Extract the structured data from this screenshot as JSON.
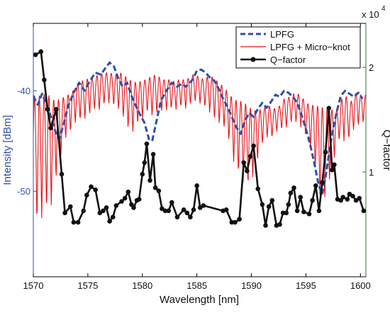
{
  "chart_data": {
    "type": "line",
    "xlabel": "Wavelength [nm]",
    "ylabel_left": "Intensity [dBm]",
    "ylabel_right": "Q−factor",
    "right_axis_multiplier": "x 10",
    "right_axis_exponent": "4",
    "xlim": [
      1570,
      1600.5
    ],
    "ylim_left": [
      -58.5,
      -33.3
    ],
    "ylim_right": [
      0,
      2.42
    ],
    "x_ticks": [
      1570,
      1575,
      1580,
      1585,
      1590,
      1595,
      1600
    ],
    "y_left_ticks": [
      -40,
      -50
    ],
    "y_right_ticks": [
      1,
      2
    ],
    "grid": false,
    "legend_position": "top-right",
    "colors": {
      "left_axis": "#3050a8",
      "right_axis": "#2a7a2a",
      "lpfg": "#2d4fa8",
      "lpfg_microknot": "#e8141a",
      "qfactor": "#111111"
    },
    "series": [
      {
        "name": "LPFG",
        "axis": "left",
        "style": "dashed",
        "points": [
          [
            1570.0,
            -40.5
          ],
          [
            1570.4,
            -41.4
          ],
          [
            1570.8,
            -40.3
          ],
          [
            1571.2,
            -41.3
          ],
          [
            1571.6,
            -42.5
          ],
          [
            1572.0,
            -44.0
          ],
          [
            1572.4,
            -44.8
          ],
          [
            1572.8,
            -43.2
          ],
          [
            1573.2,
            -41.5
          ],
          [
            1573.7,
            -40.2
          ],
          [
            1574.2,
            -39.2
          ],
          [
            1574.7,
            -40.0
          ],
          [
            1575.2,
            -39.0
          ],
          [
            1575.7,
            -38.2
          ],
          [
            1576.2,
            -38.4
          ],
          [
            1576.7,
            -37.6
          ],
          [
            1577.0,
            -37.2
          ],
          [
            1577.4,
            -37.6
          ],
          [
            1577.8,
            -38.8
          ],
          [
            1578.2,
            -39.6
          ],
          [
            1578.6,
            -39.2
          ],
          [
            1579.0,
            -40.5
          ],
          [
            1579.4,
            -41.5
          ],
          [
            1579.8,
            -42.4
          ],
          [
            1580.2,
            -43.2
          ],
          [
            1580.6,
            -44.8
          ],
          [
            1580.9,
            -45.0
          ],
          [
            1581.3,
            -43.0
          ],
          [
            1581.7,
            -41.0
          ],
          [
            1582.2,
            -40.0
          ],
          [
            1582.7,
            -39.2
          ],
          [
            1583.2,
            -39.6
          ],
          [
            1583.6,
            -39.3
          ],
          [
            1584.0,
            -39.6
          ],
          [
            1584.6,
            -38.9
          ],
          [
            1585.0,
            -38.0
          ],
          [
            1585.4,
            -37.9
          ],
          [
            1585.8,
            -38.2
          ],
          [
            1586.2,
            -38.7
          ],
          [
            1586.6,
            -39.0
          ],
          [
            1587.0,
            -39.8
          ],
          [
            1587.4,
            -40.8
          ],
          [
            1587.8,
            -41.6
          ],
          [
            1588.2,
            -42.6
          ],
          [
            1588.6,
            -43.6
          ],
          [
            1589.0,
            -44.3
          ],
          [
            1589.4,
            -43.0
          ],
          [
            1589.8,
            -42.2
          ],
          [
            1590.2,
            -42.6
          ],
          [
            1590.6,
            -41.8
          ],
          [
            1591.0,
            -41.2
          ],
          [
            1591.4,
            -41.7
          ],
          [
            1591.8,
            -41.1
          ],
          [
            1592.2,
            -40.4
          ],
          [
            1592.6,
            -40.6
          ],
          [
            1593.0,
            -40.0
          ],
          [
            1593.4,
            -40.2
          ],
          [
            1593.8,
            -40.6
          ],
          [
            1594.2,
            -41.2
          ],
          [
            1594.6,
            -42.4
          ],
          [
            1595.0,
            -43.8
          ],
          [
            1595.4,
            -45.4
          ],
          [
            1595.8,
            -47.4
          ],
          [
            1596.2,
            -49.5
          ],
          [
            1596.5,
            -50.3
          ],
          [
            1596.8,
            -48.6
          ],
          [
            1597.1,
            -46.4
          ],
          [
            1597.4,
            -44.3
          ],
          [
            1597.8,
            -42.2
          ],
          [
            1598.2,
            -40.5
          ],
          [
            1598.6,
            -40.0
          ],
          [
            1599.0,
            -40.3
          ],
          [
            1599.4,
            -40.6
          ],
          [
            1599.8,
            -40.2
          ],
          [
            1600.2,
            -40.8
          ]
        ]
      },
      {
        "name": "LPFG + Micro−knot",
        "axis": "left",
        "style": "solid",
        "envelope": {
          "x": [
            1570.0,
            1570.5,
            1571.0,
            1571.5,
            1572.0,
            1572.5,
            1573.0,
            1573.5,
            1574.0,
            1574.5,
            1575.0,
            1575.5,
            1576.0,
            1576.5,
            1577.0,
            1577.5,
            1578.0,
            1578.5,
            1579.0,
            1579.5,
            1580.0,
            1580.5,
            1581.0,
            1581.5,
            1582.0,
            1582.5,
            1583.0,
            1583.5,
            1584.0,
            1584.5,
            1585.0,
            1585.5,
            1586.0,
            1586.5,
            1587.0,
            1587.5,
            1588.0,
            1588.5,
            1589.0,
            1589.5,
            1590.0,
            1590.5,
            1591.0,
            1591.5,
            1592.0,
            1592.5,
            1593.0,
            1593.5,
            1594.0,
            1594.5,
            1595.0,
            1595.5,
            1596.0,
            1596.5,
            1597.0,
            1597.5,
            1598.0,
            1598.5,
            1599.0,
            1599.5,
            1600.0,
            1600.5
          ],
          "top": [
            -40.5,
            -40.5,
            -40.3,
            -40.5,
            -41.0,
            -40.8,
            -40.5,
            -40.2,
            -39.4,
            -39.0,
            -38.8,
            -38.6,
            -38.4,
            -38.2,
            -38.2,
            -38.4,
            -38.2,
            -38.6,
            -39.0,
            -39.2,
            -39.0,
            -38.8,
            -38.4,
            -38.6,
            -38.9,
            -38.9,
            -39.1,
            -38.8,
            -39.0,
            -38.4,
            -38.5,
            -38.8,
            -38.6,
            -38.6,
            -39.2,
            -39.6,
            -40.4,
            -40.9,
            -41.0,
            -41.3,
            -41.8,
            -42.0,
            -41.8,
            -41.4,
            -41.8,
            -41.6,
            -40.8,
            -40.6,
            -40.2,
            -40.4,
            -41.2,
            -41.4,
            -41.5,
            -41.6,
            -41.8,
            -41.9,
            -41.8,
            -40.0,
            -41.4,
            -40.2,
            -40.4,
            -40.4
          ],
          "bottom": [
            -51.5,
            -54.0,
            -51.5,
            -52.5,
            -49.2,
            -46.8,
            -44.6,
            -44.0,
            -42.8,
            -43.0,
            -42.6,
            -41.9,
            -42.0,
            -41.4,
            -41.2,
            -41.6,
            -42.0,
            -43.4,
            -44.4,
            -43.4,
            -42.8,
            -42.1,
            -42.6,
            -42.1,
            -42.1,
            -41.8,
            -41.9,
            -41.6,
            -41.8,
            -41.3,
            -41.0,
            -41.5,
            -41.8,
            -42.8,
            -43.2,
            -43.7,
            -45.2,
            -47.8,
            -48.5,
            -49.6,
            -49.2,
            -47.2,
            -45.3,
            -44.6,
            -44.7,
            -43.7,
            -44.0,
            -43.2,
            -43.1,
            -43.6,
            -44.6,
            -46.0,
            -48.8,
            -51.8,
            -50.0,
            -47.2,
            -45.0,
            -45.0,
            -44.8,
            -43.6,
            -43.4,
            -43.0
          ]
        }
      },
      {
        "name": "Q−factor",
        "axis": "right",
        "style": "solid-markers",
        "x": [
          1570.2,
          1570.7,
          1571.0,
          1571.3,
          1571.6,
          1572.1,
          1572.6,
          1572.9,
          1573.4,
          1573.7,
          1574.1,
          1574.6,
          1574.9,
          1575.3,
          1575.7,
          1576.1,
          1576.4,
          1576.7,
          1577.0,
          1577.3,
          1577.6,
          1578.1,
          1578.4,
          1578.7,
          1579.0,
          1579.2,
          1579.5,
          1579.7,
          1580.0,
          1580.2,
          1580.4,
          1580.7,
          1581.0,
          1581.2,
          1581.5,
          1581.8,
          1582.1,
          1582.4,
          1582.7,
          1583.2,
          1583.8,
          1584.1,
          1584.4,
          1584.7,
          1585.0,
          1585.3,
          1585.6,
          1587.4,
          1587.7,
          1588.2,
          1588.5,
          1588.9,
          1589.3,
          1589.6,
          1589.9,
          1590.2,
          1590.6,
          1591.0,
          1591.3,
          1591.6,
          1591.9,
          1592.3,
          1592.6,
          1592.9,
          1593.2,
          1593.4,
          1593.6,
          1593.9,
          1594.2,
          1594.5,
          1594.8,
          1595.3,
          1595.6,
          1595.9,
          1596.2,
          1596.5,
          1596.8,
          1597.1,
          1597.4,
          1597.6,
          1597.9,
          1598.2,
          1598.4,
          1598.8,
          1599.0,
          1599.3,
          1599.6,
          1599.9,
          1600.3
        ],
        "values": [
          2.12,
          2.15,
          1.88,
          1.6,
          1.42,
          1.6,
          0.98,
          0.61,
          0.67,
          0.52,
          0.52,
          0.63,
          0.78,
          0.86,
          0.83,
          0.61,
          0.63,
          0.66,
          0.53,
          0.57,
          0.68,
          0.72,
          0.75,
          0.81,
          0.69,
          0.66,
          0.73,
          0.74,
          0.98,
          1.09,
          1.27,
          0.92,
          1.17,
          0.85,
          0.82,
          0.65,
          0.63,
          0.63,
          0.71,
          0.57,
          0.64,
          0.61,
          0.57,
          0.64,
          0.87,
          0.66,
          0.68,
          0.63,
          0.64,
          0.52,
          0.52,
          0.55,
          1.09,
          1.01,
          1.15,
          1.25,
          0.84,
          0.69,
          0.49,
          0.67,
          0.73,
          0.49,
          0.5,
          0.61,
          0.61,
          0.69,
          0.8,
          0.85,
          0.63,
          0.76,
          0.62,
          0.6,
          0.73,
          0.87,
          0.63,
          0.9,
          1.19,
          1.61,
          1.02,
          1.07,
          0.74,
          0.73,
          0.76,
          0.74,
          0.79,
          0.77,
          0.73,
          0.75,
          0.63
        ]
      }
    ]
  }
}
